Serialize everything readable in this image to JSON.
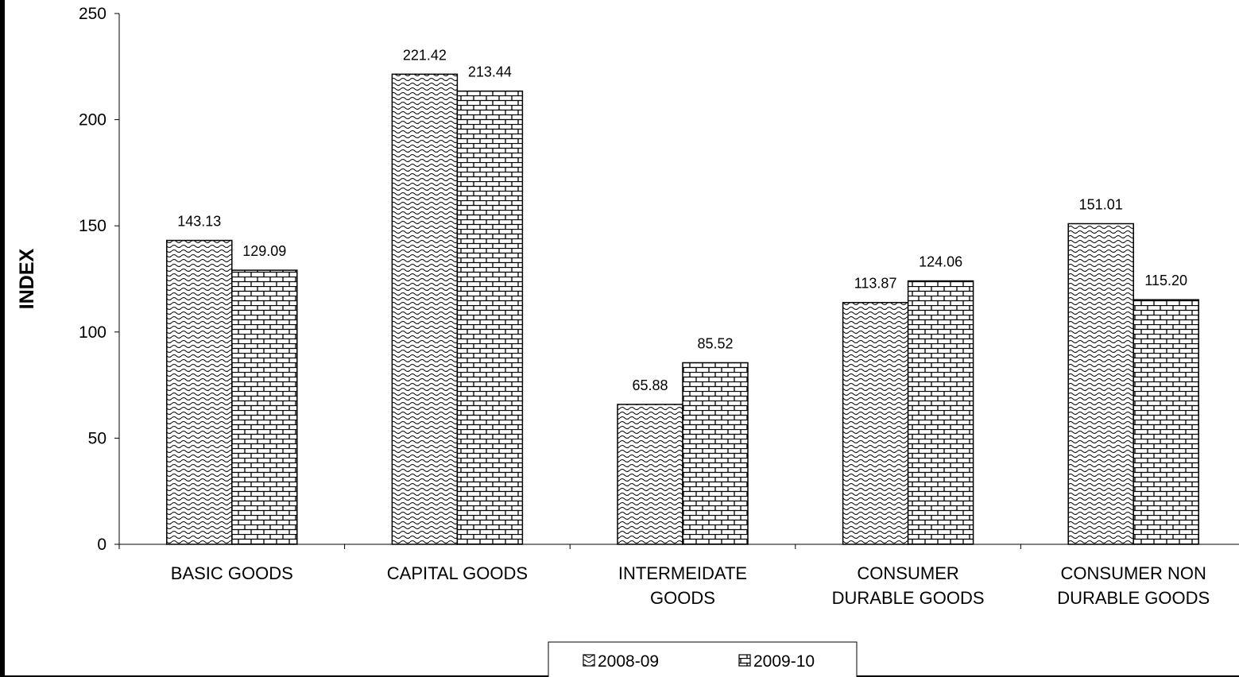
{
  "chart_data": {
    "type": "bar",
    "title": "",
    "xlabel": "",
    "ylabel": "INDEX",
    "ylim": [
      0,
      250
    ],
    "yticks": [
      "0",
      "50",
      "100",
      "150",
      "200",
      "250"
    ],
    "grid": false,
    "legend_position": "bottom",
    "categories": [
      [
        "BASIC GOODS"
      ],
      [
        "CAPITAL GOODS"
      ],
      [
        "INTERMEIDATE",
        "GOODS"
      ],
      [
        "CONSUMER",
        "DURABLE GOODS"
      ],
      [
        "CONSUMER NON",
        "DURABLE GOODS"
      ]
    ],
    "series": [
      {
        "name": "2008-09",
        "pattern": "wave",
        "values": [
          143.13,
          221.42,
          65.88,
          113.87,
          151.01
        ],
        "labels": [
          "143.13",
          "221.42",
          "65.88",
          "113.87",
          "151.01"
        ]
      },
      {
        "name": "2009-10",
        "pattern": "brick",
        "values": [
          129.09,
          213.44,
          85.52,
          124.06,
          115.2
        ],
        "labels": [
          "129.09",
          "213.44",
          "85.52",
          "124.06",
          "115.20"
        ]
      }
    ],
    "colors": {
      "bar_border": "#000000",
      "pattern": "#000000",
      "background": "#ffffff"
    }
  }
}
